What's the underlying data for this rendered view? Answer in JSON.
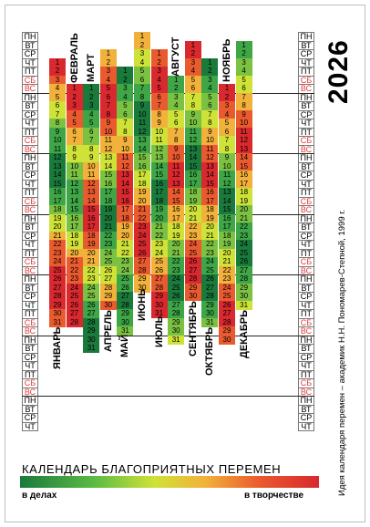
{
  "year": "2026",
  "credit": "Идея календаря перемен – академик Н.Н. Пономарев-Степной, 1999 г.",
  "title": "КАЛЕНДАРЬ БЛАГОПРИЯТНЫХ ПЕРЕМЕН",
  "legend": {
    "left": "в делах",
    "right": "в творчестве"
  },
  "weekdays": [
    "ПН",
    "ВТ",
    "СР",
    "ЧТ",
    "ПТ",
    "СБ",
    "ВС"
  ],
  "weekend_color": "#e53a3a",
  "months": [
    "ЯНВАРЬ",
    "ФЕВРАЛЬ",
    "МАРТ",
    "АПРЕЛЬ",
    "МАЙ",
    "ИЮНЬ",
    "ИЮЛЬ",
    "АВГУСТ",
    "СЕНТЯБРЬ",
    "ОКТЯБРЬ",
    "НОЯБРЬ",
    "ДЕКАБРЬ"
  ],
  "month_start_weekday": [
    3,
    6,
    6,
    2,
    4,
    0,
    2,
    5,
    1,
    3,
    6,
    1
  ],
  "month_days": [
    31,
    28,
    31,
    30,
    31,
    30,
    31,
    31,
    30,
    31,
    30,
    31
  ],
  "month_label_position": [
    "bottom",
    "top",
    "top",
    "bottom",
    "bottom",
    "bottom",
    "bottom",
    "top",
    "bottom",
    "bottom",
    "top",
    "bottom"
  ],
  "palette": [
    "#1a7a3c",
    "#3ea647",
    "#7cc242",
    "#cfe237",
    "#f2b13a",
    "#ea5a2f",
    "#d9282e"
  ],
  "favorability_scale": "0 = в делах (green) … 6 = в творчестве (red)",
  "favorability": [
    [
      6,
      6,
      5,
      4,
      4,
      3,
      3,
      2,
      1,
      1,
      1,
      0,
      0,
      0,
      0,
      1,
      1,
      2,
      3,
      3,
      4,
      5,
      5,
      5,
      6,
      6,
      6,
      6,
      6,
      5,
      5
    ],
    [
      6,
      6,
      6,
      5,
      5,
      4,
      4,
      3,
      3,
      2,
      2,
      1,
      1,
      1,
      1,
      2,
      2,
      3,
      3,
      4,
      5,
      5,
      5,
      6,
      6,
      6,
      6,
      6
    ],
    [
      0,
      0,
      0,
      1,
      1,
      2,
      2,
      3,
      3,
      4,
      4,
      5,
      5,
      5,
      6,
      6,
      6,
      5,
      5,
      4,
      4,
      3,
      3,
      2,
      2,
      1,
      1,
      0,
      0,
      0,
      0
    ],
    [
      4,
      4,
      5,
      5,
      6,
      6,
      6,
      6,
      5,
      5,
      4,
      4,
      3,
      3,
      2,
      2,
      1,
      1,
      0,
      0,
      0,
      1,
      1,
      2,
      2,
      3,
      3,
      4,
      4,
      5
    ],
    [
      0,
      0,
      1,
      1,
      2,
      2,
      3,
      3,
      4,
      4,
      5,
      5,
      6,
      6,
      6,
      6,
      5,
      5,
      4,
      4,
      3,
      3,
      2,
      2,
      1,
      1,
      0,
      0,
      1,
      1,
      2
    ],
    [
      4,
      4,
      3,
      3,
      2,
      2,
      1,
      1,
      0,
      0,
      0,
      0,
      1,
      1,
      2,
      2,
      3,
      3,
      4,
      4,
      5,
      5,
      6,
      6,
      6,
      6,
      5,
      5,
      4,
      4
    ],
    [
      5,
      5,
      6,
      6,
      6,
      5,
      5,
      4,
      4,
      3,
      3,
      2,
      2,
      1,
      1,
      0,
      0,
      0,
      1,
      1,
      2,
      2,
      3,
      3,
      4,
      4,
      5,
      5,
      6,
      6,
      6
    ],
    [
      1,
      1,
      2,
      2,
      3,
      3,
      4,
      4,
      5,
      5,
      6,
      6,
      6,
      5,
      5,
      4,
      4,
      3,
      3,
      2,
      2,
      1,
      1,
      0,
      0,
      0,
      1,
      1,
      2,
      2,
      3
    ],
    [
      6,
      6,
      5,
      5,
      4,
      4,
      3,
      3,
      2,
      2,
      1,
      1,
      0,
      0,
      0,
      1,
      1,
      2,
      2,
      3,
      3,
      4,
      4,
      5,
      5,
      6,
      6,
      6,
      5,
      5
    ],
    [
      0,
      0,
      1,
      1,
      2,
      2,
      3,
      3,
      4,
      4,
      5,
      5,
      6,
      6,
      6,
      5,
      5,
      4,
      4,
      3,
      3,
      2,
      2,
      1,
      1,
      0,
      0,
      0,
      1,
      1,
      2
    ],
    [
      6,
      6,
      5,
      5,
      4,
      4,
      3,
      3,
      2,
      2,
      1,
      1,
      0,
      0,
      0,
      1,
      1,
      2,
      2,
      3,
      3,
      4,
      4,
      5,
      5,
      6,
      6,
      6,
      5,
      5
    ],
    [
      1,
      1,
      2,
      2,
      3,
      3,
      4,
      4,
      5,
      5,
      6,
      6,
      6,
      5,
      5,
      4,
      4,
      3,
      3,
      2,
      2,
      1,
      1,
      0,
      0,
      0,
      1,
      1,
      2,
      2,
      3
    ]
  ]
}
